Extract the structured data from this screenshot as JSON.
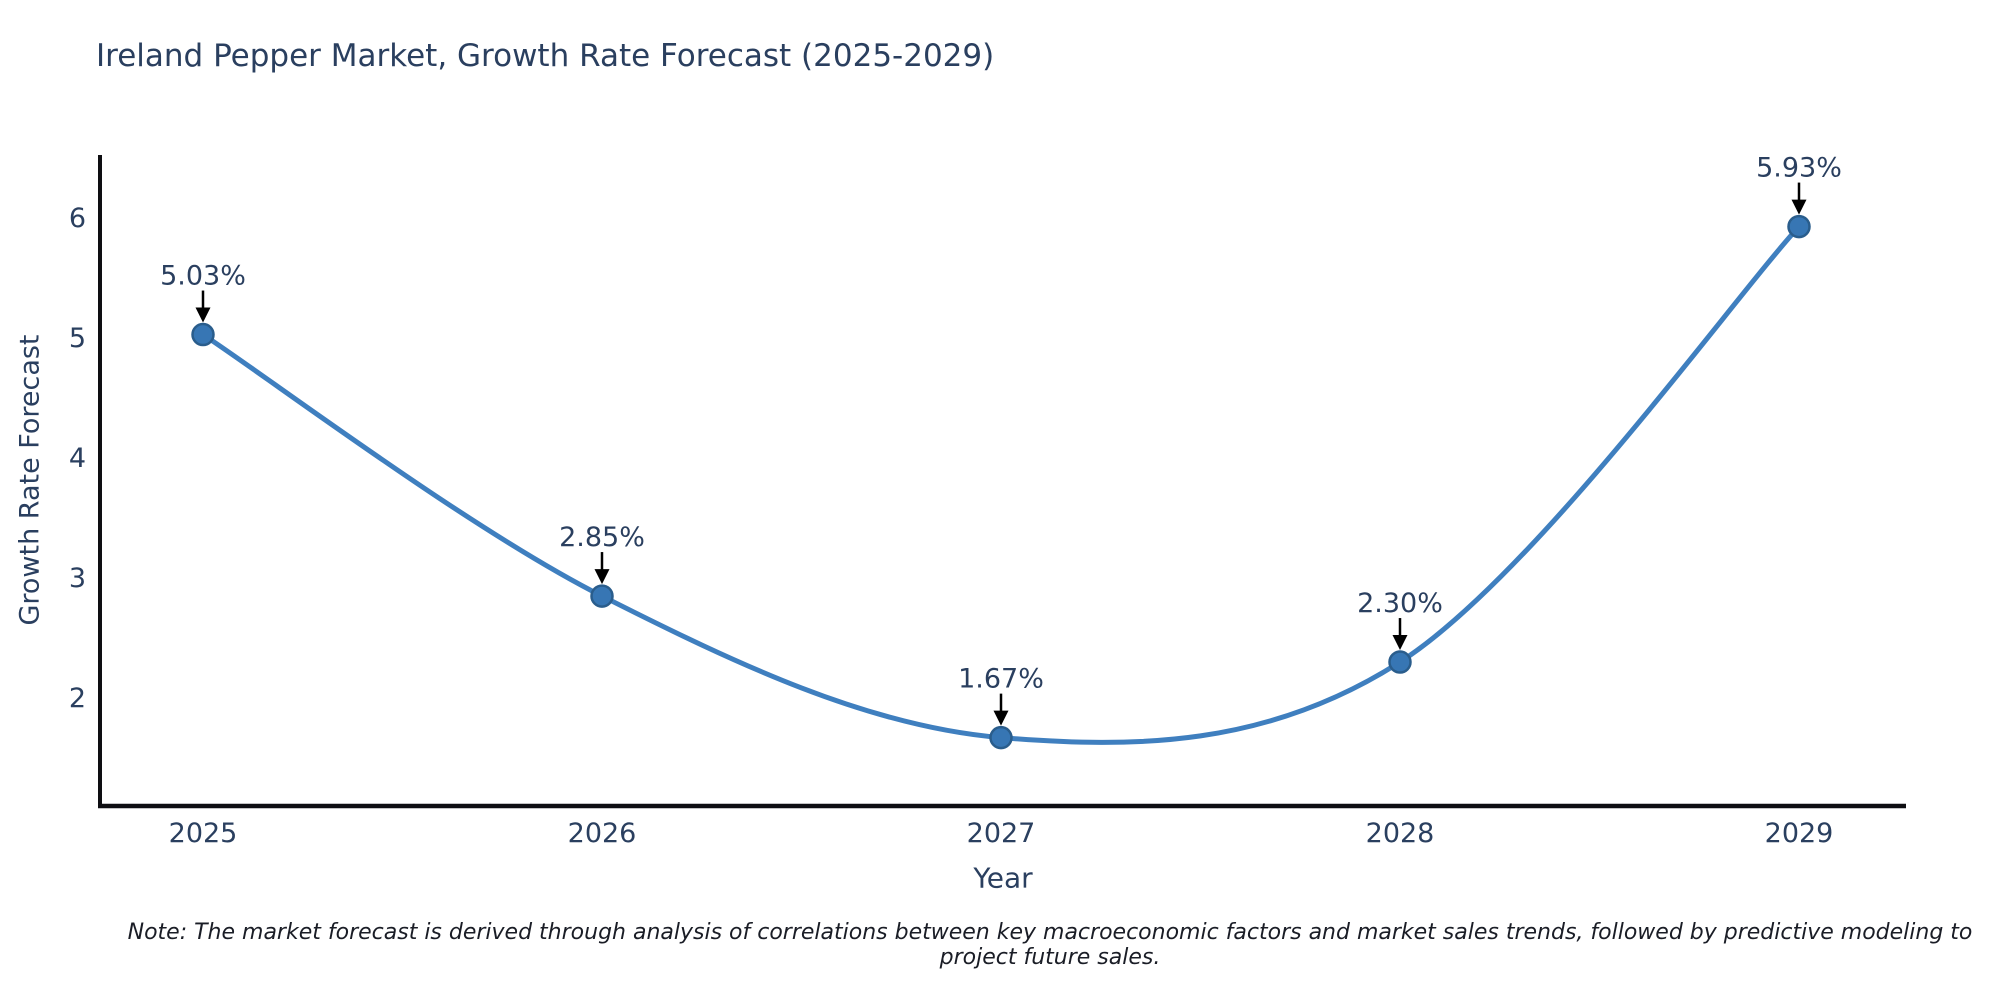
{
  "header": {
    "title": "Ireland Pepper Market, Growth Rate Forecast (2025-2029)"
  },
  "chart_data": {
    "type": "line",
    "title": "Ireland Pepper Market, Growth Rate Forecast (2025-2029)",
    "categories": [
      "2025",
      "2026",
      "2027",
      "2028",
      "2029"
    ],
    "values": [
      5.03,
      2.85,
      1.67,
      2.3,
      5.93
    ],
    "annotations": [
      "5.03%",
      "2.85%",
      "1.67%",
      "2.30%",
      "5.93%"
    ],
    "xlabel": "Year",
    "ylabel": "Growth Rate Forecast",
    "y_ticks": [
      2,
      3,
      4,
      5,
      6
    ],
    "ylim": [
      1.1,
      6.51
    ],
    "grid": false,
    "legend": "none",
    "line_shape": "spline",
    "marker": "circle",
    "annotation_arrows": "down",
    "colors": {
      "line": "#3f7fbf",
      "marker_fill": "#3776b4",
      "marker_edge": "#2a5d8c",
      "arrow": "#000000",
      "axis": "#0e0e12",
      "text": "#2a3f5f"
    }
  },
  "footer": {
    "note": "Note: The market forecast is derived through analysis of correlations between key macroeconomic factors and market sales trends, followed by predictive modeling to project future sales."
  }
}
